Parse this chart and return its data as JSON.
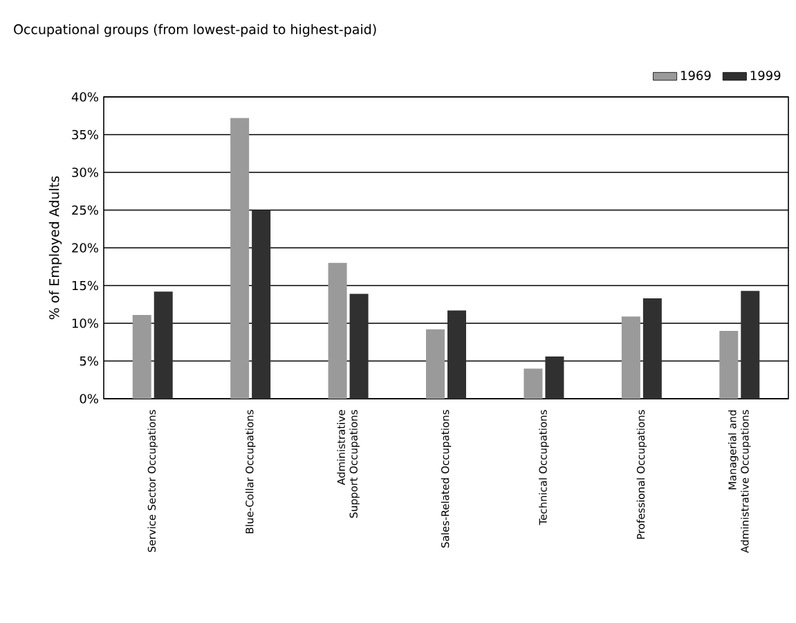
{
  "chart_data": {
    "type": "bar",
    "title": "Occupational groups (from lowest-paid to highest-paid)",
    "ylabel": "% of Employed Adults",
    "categories": [
      "Service Sector Occupations",
      "Blue-Collar Occupations",
      "Administrative Support Occupations",
      "Sales-Related Occupations",
      "Technical Occupations",
      "Professional Occupations",
      "Managerial and Administrative Occupations"
    ],
    "series": [
      {
        "name": "1969",
        "color": "#9a9a9a",
        "values": [
          11.1,
          37.2,
          18.0,
          9.2,
          4.0,
          10.9,
          9.0
        ]
      },
      {
        "name": "1999",
        "color": "#303030",
        "values": [
          14.2,
          25.0,
          13.9,
          11.7,
          5.6,
          13.3,
          14.3
        ]
      }
    ],
    "ylim": [
      0,
      40
    ],
    "yticks": [
      {
        "value": 0,
        "label": "0%"
      },
      {
        "value": 5,
        "label": "5%"
      },
      {
        "value": 10,
        "label": "10%"
      },
      {
        "value": 15,
        "label": "15%"
      },
      {
        "value": 20,
        "label": "20%"
      },
      {
        "value": 25,
        "label": "25%"
      },
      {
        "value": 30,
        "label": "30%"
      },
      {
        "value": 35,
        "label": "35%"
      },
      {
        "value": 40,
        "label": "40%"
      }
    ],
    "grid": "y",
    "legend": "top right"
  }
}
